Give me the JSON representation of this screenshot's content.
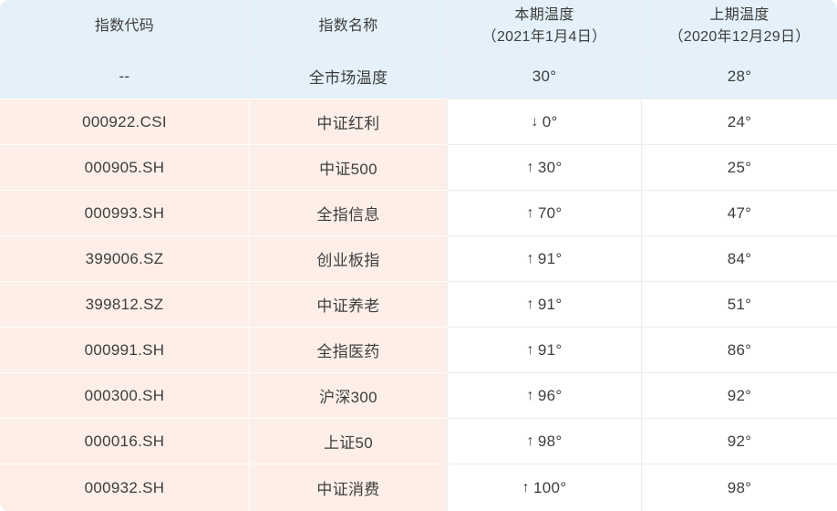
{
  "colors": {
    "header_bg": "#e4f1fa",
    "row_pink_bg": "#fdeee8",
    "cell_white_bg": "#ffffff",
    "text": "#3e3e3e",
    "divider_gray": "#ededed"
  },
  "chart_data": {
    "type": "table",
    "title": "",
    "columns": [
      {
        "label": "指数代码"
      },
      {
        "label": "指数名称"
      },
      {
        "label": "本期温度",
        "sub": "（2021年1月4日）"
      },
      {
        "label": "上期温度",
        "sub": "（2020年12月29日）"
      }
    ],
    "summary_row": {
      "code": "--",
      "name": "全市场温度",
      "current": "30°",
      "previous": "28°"
    },
    "rows": [
      {
        "code": "000922.CSI",
        "name": "中证红利",
        "trend": "↓",
        "current": "0°",
        "previous": "24°"
      },
      {
        "code": "000905.SH",
        "name": "中证500",
        "trend": "↑",
        "current": "30°",
        "previous": "25°"
      },
      {
        "code": "000993.SH",
        "name": "全指信息",
        "trend": "↑",
        "current": "70°",
        "previous": "47°"
      },
      {
        "code": "399006.SZ",
        "name": "创业板指",
        "trend": "↑",
        "current": "91°",
        "previous": "84°"
      },
      {
        "code": "399812.SZ",
        "name": "中证养老",
        "trend": "↑",
        "current": "91°",
        "previous": "51°"
      },
      {
        "code": "000991.SH",
        "name": "全指医药",
        "trend": "↑",
        "current": "91°",
        "previous": "86°"
      },
      {
        "code": "000300.SH",
        "name": "沪深300",
        "trend": "↑",
        "current": "96°",
        "previous": "92°"
      },
      {
        "code": "000016.SH",
        "name": "上证50",
        "trend": "↑",
        "current": "98°",
        "previous": "92°"
      },
      {
        "code": "000932.SH",
        "name": "中证消费",
        "trend": "↑",
        "current": "100°",
        "previous": "98°"
      }
    ]
  }
}
